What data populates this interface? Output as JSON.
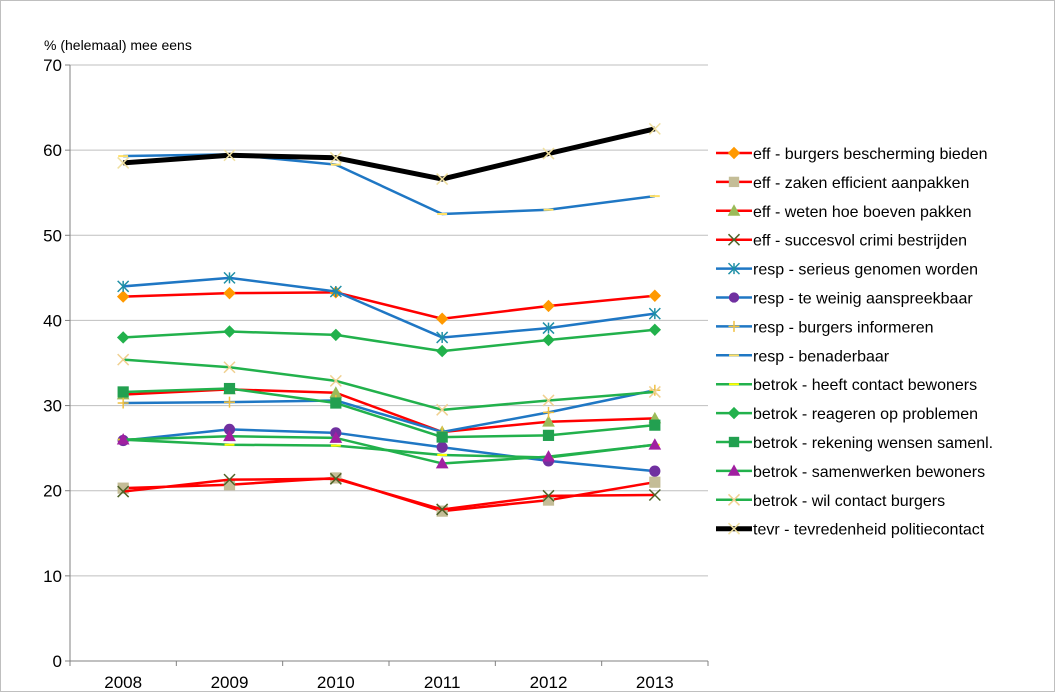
{
  "chart_data": {
    "type": "line",
    "title": "",
    "ylabel": "% (helemaal) mee eens",
    "xlabel": "",
    "categories": [
      "2008",
      "2009",
      "2010",
      "2011",
      "2012",
      "2013"
    ],
    "ylim": [
      0,
      70
    ],
    "yticks": [
      0,
      10,
      20,
      30,
      40,
      50,
      60,
      70
    ],
    "grid": "horizontal",
    "legend_position": "right",
    "series": [
      {
        "name": "eff - burgers bescherming bieden",
        "values": [
          42.8,
          43.2,
          43.3,
          40.2,
          41.7,
          42.9
        ],
        "color": "#ff0000",
        "marker": "diamond",
        "marker_color": "#ff9900",
        "width": 2.5
      },
      {
        "name": "eff - zaken efficient aanpakken",
        "values": [
          20.3,
          20.7,
          21.5,
          17.6,
          18.9,
          21.0
        ],
        "color": "#ff0000",
        "marker": "square",
        "marker_color": "#c4bd97",
        "width": 2.5
      },
      {
        "name": "eff - weten hoe boeven pakken",
        "values": [
          31.3,
          31.9,
          31.5,
          26.9,
          28.1,
          28.5
        ],
        "color": "#ff0000",
        "marker": "triangle",
        "marker_color": "#9bbb59",
        "width": 2.5
      },
      {
        "name": "eff - succesvol crimi bestrijden",
        "values": [
          19.9,
          21.3,
          21.4,
          17.8,
          19.4,
          19.5
        ],
        "color": "#ff0000",
        "marker": "x",
        "marker_color": "#4f6228",
        "width": 2.5
      },
      {
        "name": "resp - serieus genomen worden",
        "values": [
          44.0,
          45.0,
          43.4,
          38.0,
          39.1,
          40.8
        ],
        "color": "#1f77c4",
        "marker": "star",
        "marker_color": "#1f8fa6",
        "width": 2.5
      },
      {
        "name": "resp - te weinig aanspreekbaar",
        "values": [
          25.9,
          27.2,
          26.8,
          25.1,
          23.5,
          22.3
        ],
        "color": "#1f77c4",
        "marker": "circle",
        "marker_color": "#7030a0",
        "width": 2.5
      },
      {
        "name": "resp - burgers informeren",
        "values": [
          30.3,
          30.4,
          30.6,
          26.9,
          29.2,
          31.8
        ],
        "color": "#1f77c4",
        "marker": "plus",
        "marker_color": "#f0c040",
        "width": 2.5
      },
      {
        "name": "resp - benaderbaar",
        "values": [
          59.3,
          59.5,
          58.3,
          52.5,
          53.0,
          54.6
        ],
        "color": "#1f77c4",
        "marker": "dash",
        "marker_color": "#ffe066",
        "width": 2.5
      },
      {
        "name": "betrok - heeft contact bewoners",
        "values": [
          26.0,
          25.4,
          25.3,
          24.2,
          23.9,
          25.4
        ],
        "color": "#22b14c",
        "marker": "dash",
        "marker_color": "#ffff00",
        "width": 2.5
      },
      {
        "name": "betrok - reageren op problemen",
        "values": [
          38.0,
          38.7,
          38.3,
          36.4,
          37.7,
          38.9
        ],
        "color": "#22b14c",
        "marker": "diamond",
        "marker_color": "#22b14c",
        "width": 2.5
      },
      {
        "name": "betrok - rekening wensen samenl.",
        "values": [
          31.6,
          32.0,
          30.3,
          26.3,
          26.5,
          27.7
        ],
        "color": "#22b14c",
        "marker": "square",
        "marker_color": "#22a050",
        "width": 2.5
      },
      {
        "name": "betrok - samenwerken bewoners",
        "values": [
          26.0,
          26.4,
          26.2,
          23.2,
          24.0,
          25.4
        ],
        "color": "#22b14c",
        "marker": "triangle",
        "marker_color": "#a020a0",
        "width": 2.5
      },
      {
        "name": "betrok - wil contact burgers",
        "values": [
          35.4,
          34.5,
          32.9,
          29.5,
          30.6,
          31.6
        ],
        "color": "#22b14c",
        "marker": "x",
        "marker_color": "#f0d090",
        "width": 2.5
      },
      {
        "name": "tevr -  tevredenheid politiecontact",
        "values": [
          58.5,
          59.4,
          59.1,
          56.6,
          59.6,
          62.5
        ],
        "color": "#000000",
        "marker": "x",
        "marker_color": "#f0e0a0",
        "width": 5
      }
    ]
  }
}
